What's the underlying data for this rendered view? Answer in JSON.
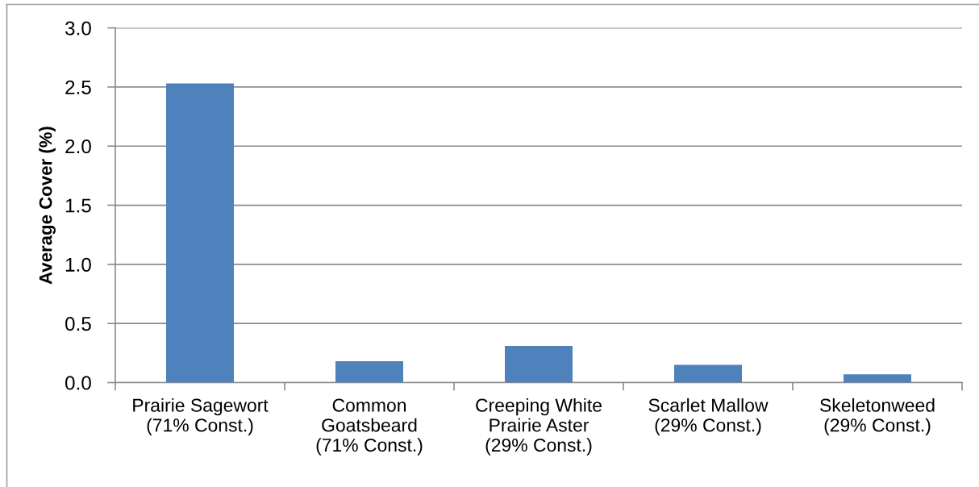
{
  "chart_data": {
    "type": "bar",
    "ylabel": "Average Cover (%)",
    "categories": [
      "Prairie Sagewort\n(71% Const.)",
      "Common\nGoatsbeard\n(71% Const.)",
      "Creeping White\nPrairie Aster\n(29% Const.)",
      "Scarlet Mallow\n(29% Const.)",
      "Skeletonweed\n(29% Const.)"
    ],
    "values": [
      2.53,
      0.18,
      0.31,
      0.15,
      0.07
    ],
    "color": "#4f81bd",
    "ylim": [
      0,
      3.0
    ],
    "yticks": [
      {
        "value": 0,
        "label": "0.0"
      },
      {
        "value": 0.5,
        "label": "0.5"
      },
      {
        "value": 1.0,
        "label": "1.0"
      },
      {
        "value": 1.5,
        "label": "1.5"
      },
      {
        "value": 2.0,
        "label": "2.0"
      },
      {
        "value": 2.5,
        "label": "2.5"
      },
      {
        "value": 3.0,
        "label": "3.0"
      }
    ],
    "grid": "y",
    "legend": false
  }
}
